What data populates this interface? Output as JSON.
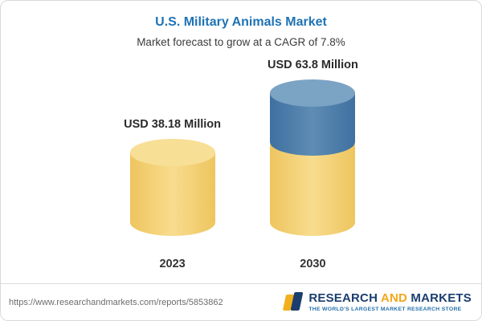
{
  "chart_data": {
    "type": "bar",
    "title": "U.S. Military Animals Market",
    "subtitle": "Market forecast to grow at a CAGR of 7.8%",
    "categories": [
      "2023",
      "2030"
    ],
    "values": [
      38.18,
      63.8
    ],
    "value_labels": [
      "USD 38.18 Million",
      "USD 63.8 Million"
    ],
    "unit": "USD Million",
    "cagr_percent": 7.8,
    "ylim": [
      0,
      70
    ],
    "legend_position": "none",
    "grid": false,
    "colors": {
      "base_yellow": "#f5d16e",
      "highlight_blue": "#4a7ca8",
      "title_blue": "#1e73b4"
    }
  },
  "footer": {
    "url": "https://www.researchandmarkets.com/reports/5853862"
  },
  "logo": {
    "word1": "RESEARCH",
    "word2": "AND",
    "word3": "MARKETS",
    "tagline": "THE WORLD'S LARGEST MARKET RESEARCH STORE"
  }
}
